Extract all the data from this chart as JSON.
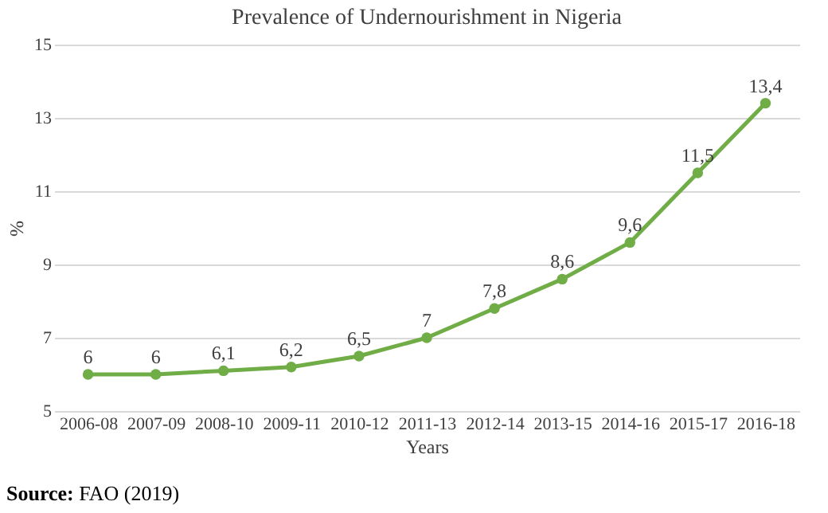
{
  "chart_data": {
    "type": "line",
    "title": "Prevalence of Undernourishment in Nigeria",
    "xlabel": "Years",
    "ylabel": "%",
    "categories": [
      "2006-08",
      "2007-09",
      "2008-10",
      "2009-11",
      "2010-12",
      "2011-13",
      "2012-14",
      "2013-15",
      "2014-16",
      "2015-17",
      "2016-18"
    ],
    "series": [
      {
        "color": "#70ad47",
        "values": [
          6,
          6,
          6.1,
          6.2,
          6.5,
          7,
          7.8,
          8.6,
          9.6,
          11.5,
          13.4
        ],
        "value_labels": [
          "6",
          "6",
          "6,1",
          "6,2",
          "6,5",
          "7",
          "7,8",
          "8,6",
          "9,6",
          "11,5",
          "13,4"
        ]
      }
    ],
    "ylim": [
      5,
      15
    ],
    "yticks": [
      5,
      7,
      9,
      11,
      13,
      15
    ],
    "grid": "y",
    "marker": "circle",
    "line_style": "solid",
    "annotations": [
      "Source: FAO (2019)"
    ]
  }
}
